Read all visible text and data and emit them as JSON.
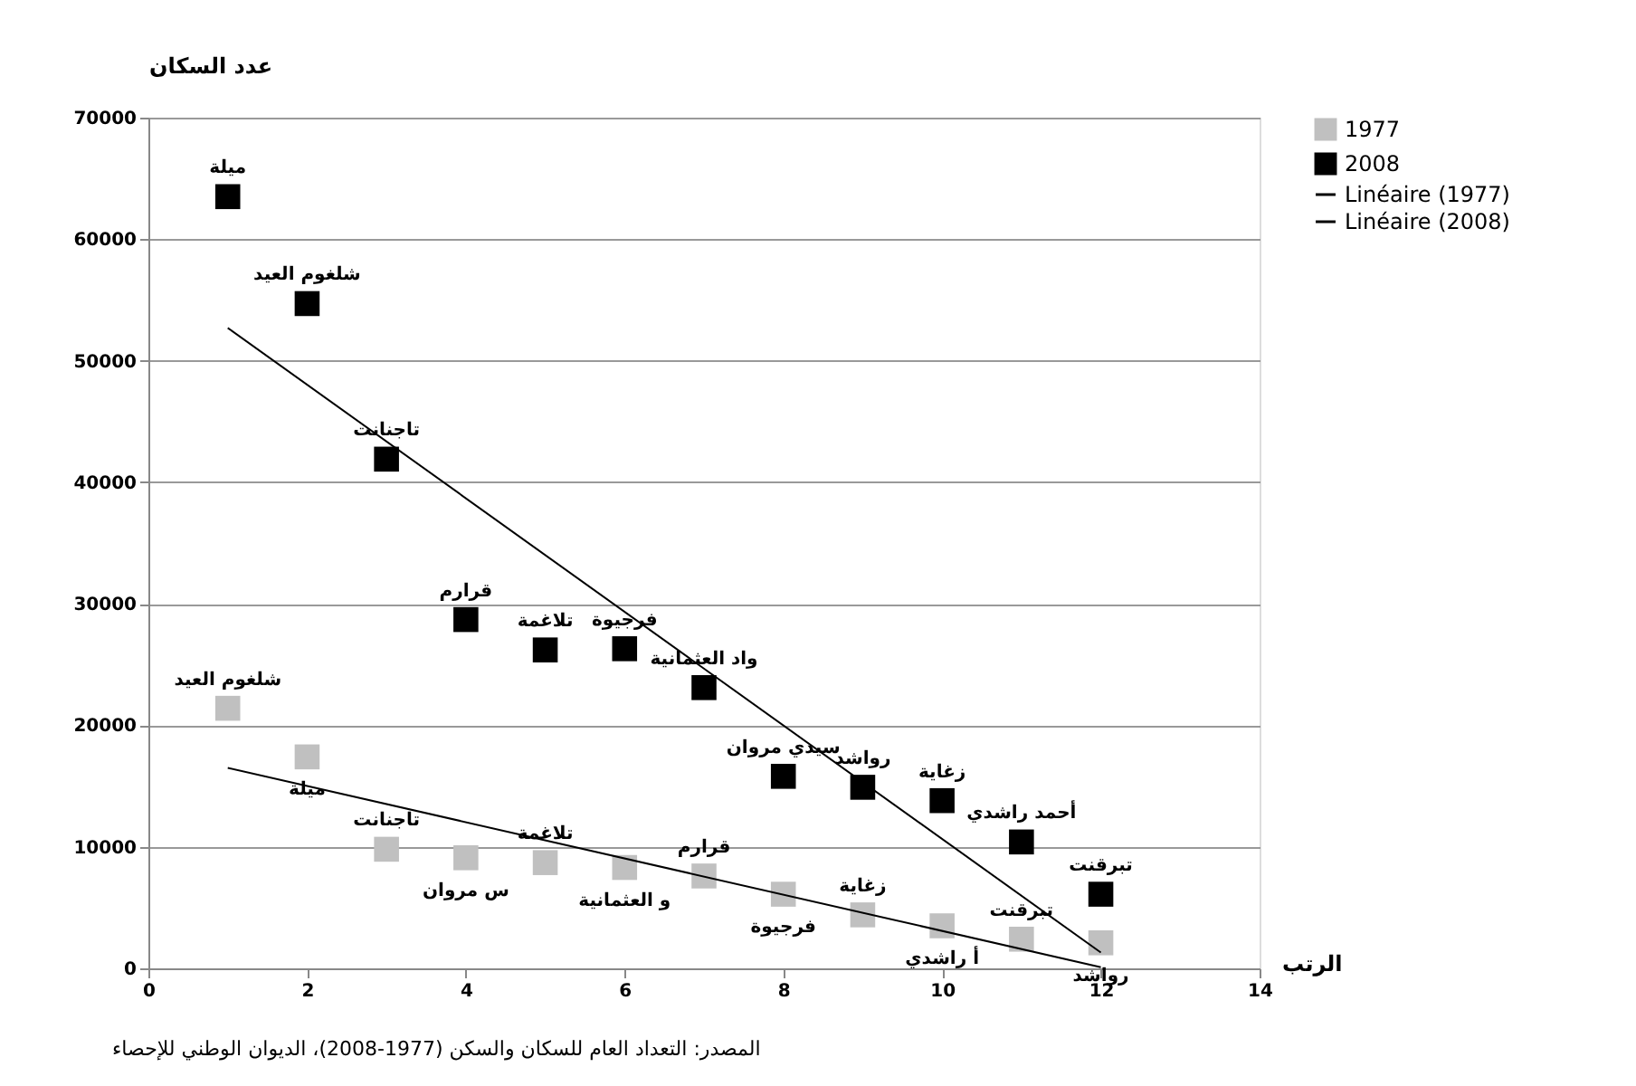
{
  "chart_data": {
    "type": "scatter",
    "xlabel": "الرتب",
    "ylabel": "عدد السكان",
    "xlim": [
      0,
      14
    ],
    "xticks": [
      0,
      2,
      4,
      6,
      8,
      10,
      12,
      14
    ],
    "ylim": [
      0,
      70000
    ],
    "yticks": [
      0,
      10000,
      20000,
      30000,
      40000,
      50000,
      60000,
      70000
    ],
    "grid": "y",
    "legend": "right",
    "marker": "square",
    "series": [
      {
        "name": "1977",
        "color": "#c0c0c0",
        "x": [
          1,
          2,
          3,
          4,
          5,
          6,
          7,
          8,
          9,
          10,
          11,
          12
        ],
        "values": [
          21400,
          17400,
          9800,
          9100,
          8700,
          8300,
          7600,
          6100,
          4400,
          3500,
          2400,
          2100
        ]
      },
      {
        "name": "2008",
        "color": "#000000",
        "x": [
          1,
          2,
          3,
          4,
          5,
          6,
          7,
          8,
          9,
          10,
          11,
          12
        ],
        "values": [
          63500,
          54700,
          41900,
          28700,
          26200,
          26300,
          23100,
          15800,
          14900,
          13800,
          10400,
          6100
        ]
      },
      {
        "name": "Linéaire (1977)",
        "type": "line",
        "marker": "none",
        "line_style": "solid",
        "color": "#000000",
        "x": [
          1,
          12
        ],
        "values": [
          16500,
          100
        ]
      },
      {
        "name": "Linéaire (2008)",
        "type": "line",
        "marker": "none",
        "line_style": "solid",
        "color": "#000000",
        "x": [
          1,
          12
        ],
        "values": [
          52700,
          1300
        ]
      }
    ],
    "annotations": [
      {
        "text": "ميلة",
        "x": 1,
        "y": 63500
      },
      {
        "text": "شلغوم العيد",
        "x": 2,
        "y": 54700
      },
      {
        "text": "تاجنانت",
        "x": 3,
        "y": 41900
      },
      {
        "text": "قرارم",
        "x": 4,
        "y": 28700
      },
      {
        "text": "تلاغمة",
        "x": 5,
        "y": 26200
      },
      {
        "text": "فرجيوة",
        "x": 6,
        "y": 26300
      },
      {
        "text": "واد العثمانية",
        "x": 7,
        "y": 23100
      },
      {
        "text": "سيدي مروان",
        "x": 8,
        "y": 15800
      },
      {
        "text": "رواشد",
        "x": 9,
        "y": 14900
      },
      {
        "text": "زغاية",
        "x": 10,
        "y": 13800
      },
      {
        "text": "أحمد راشدي",
        "x": 11,
        "y": 10400
      },
      {
        "text": "تبرقنت",
        "x": 12,
        "y": 6100
      },
      {
        "text": "شلغوم العيد",
        "x": 1,
        "y": 21400
      },
      {
        "text": "ميلة",
        "x": 2,
        "y": 17400
      },
      {
        "text": "تاجنانت",
        "x": 3,
        "y": 9800
      },
      {
        "text": "س مروان",
        "x": 4,
        "y": 9100
      },
      {
        "text": "تلاغمة",
        "x": 5,
        "y": 8700
      },
      {
        "text": "و العثمانية",
        "x": 6,
        "y": 8300
      },
      {
        "text": "قرارم",
        "x": 7,
        "y": 7600
      },
      {
        "text": "فرجيوة",
        "x": 8,
        "y": 6100
      },
      {
        "text": "زغاية",
        "x": 9,
        "y": 4400
      },
      {
        "text": "أ راشدي",
        "x": 10,
        "y": 3500
      },
      {
        "text": "تبرقنت",
        "x": 11,
        "y": 2400
      },
      {
        "text": "رواشد",
        "x": 12,
        "y": 2100
      },
      "المصدر: التعداد العام للسكان والسكن (1977-2008)، الديوان الوطني للإحصاء"
    ]
  }
}
